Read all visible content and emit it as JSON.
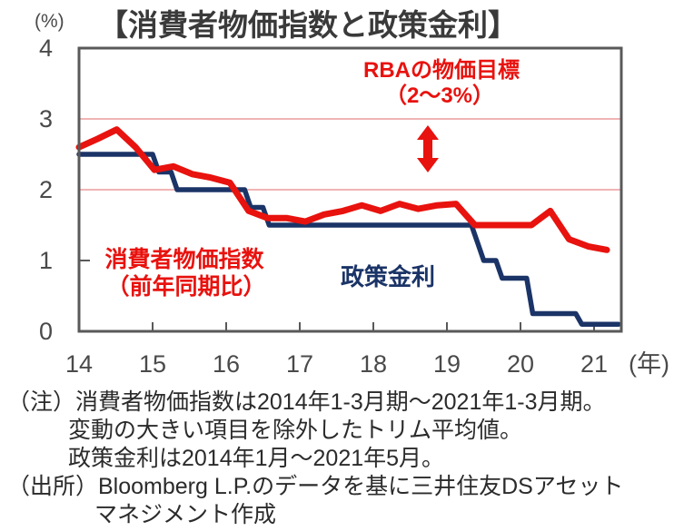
{
  "header": {
    "y_unit": "(%)",
    "title": "【消費者物価指数と政策金利】"
  },
  "chart_data": {
    "type": "line",
    "title": "消費者物価指数と政策金利",
    "y_axis": {
      "unit": "(%)",
      "min": 0,
      "max": 4,
      "ticks": [
        0,
        1,
        2,
        3,
        4
      ]
    },
    "x_axis": {
      "unit": "(年)",
      "ticks": [
        "14",
        "15",
        "16",
        "17",
        "18",
        "19",
        "20",
        "21"
      ],
      "first_year": 2014
    },
    "grid": "target-band-lines-only",
    "target_band": {
      "label_line1": "RBAの物価目標",
      "label_line2": "（2～3%）",
      "low": 2,
      "high": 3,
      "gridline_color": "#ec9b9b",
      "arrow_icon": "double-arrow-vertical"
    },
    "series": [
      {
        "name": "消費者物価指数（前年同期比）",
        "label_line1": "消費者物価指数",
        "label_line2": "（前年同期比）",
        "color": "#e8120e",
        "frequency": "quarterly",
        "period_start": "2014Q1",
        "period_end": "2021Q1",
        "values": [
          2.6,
          2.72,
          2.85,
          2.6,
          2.28,
          2.33,
          2.22,
          2.17,
          2.1,
          1.7,
          1.6,
          1.6,
          1.55,
          1.65,
          1.7,
          1.78,
          1.7,
          1.8,
          1.73,
          1.78,
          1.8,
          1.5,
          1.5,
          1.5,
          1.5,
          1.7,
          1.3,
          1.2,
          1.15
        ]
      },
      {
        "name": "政策金利",
        "label": "政策金利",
        "color": "#1b3467",
        "frequency": "monthly",
        "period_start": "2014-01",
        "period_end": "2021-05",
        "segments": [
          {
            "from": "2014-01",
            "to": "2015-01",
            "value": 2.5
          },
          {
            "from": "2015-02",
            "to": "2015-04",
            "value": 2.25
          },
          {
            "from": "2015-05",
            "to": "2016-04",
            "value": 2.0
          },
          {
            "from": "2016-05",
            "to": "2016-07",
            "value": 1.75
          },
          {
            "from": "2016-08",
            "to": "2019-05",
            "value": 1.5
          },
          {
            "from": "2019-06",
            "to": "2019-06",
            "value": 1.25
          },
          {
            "from": "2019-07",
            "to": "2019-09",
            "value": 1.0
          },
          {
            "from": "2019-10",
            "to": "2020-02",
            "value": 0.75
          },
          {
            "from": "2020-03",
            "to": "2020-10",
            "value": 0.25
          },
          {
            "from": "2020-11",
            "to": "2021-05",
            "value": 0.1
          }
        ]
      }
    ]
  },
  "notes": {
    "line1": "（注）消費者物価指数は2014年1-3月期～2021年1-3月期。",
    "line2": "変動の大きい項目を除外したトリム平均値。",
    "line3": "政策金利は2014年1月～2021年5月。",
    "line4": "（出所）Bloomberg L.P.のデータを基に三井住友DSアセット",
    "line5": "マネジメント作成"
  }
}
